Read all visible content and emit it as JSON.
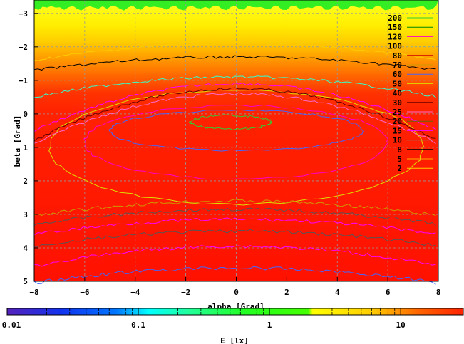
{
  "chart_data": {
    "type": "heatmap",
    "xlabel": "alpha [Grad]",
    "ylabel": "beta [Grad]",
    "xlim": [
      -8,
      8
    ],
    "ylim": [
      -3.4,
      5
    ],
    "y_reversed": true,
    "x_ticks": [
      -8,
      -6,
      -4,
      -2,
      0,
      2,
      4,
      6,
      8
    ],
    "y_ticks": [
      -3,
      -2,
      -1,
      0,
      1,
      2,
      3,
      4,
      5
    ],
    "grid": true,
    "colorbar": {
      "label": "E [lx]",
      "scale": "log",
      "range": [
        0.01,
        30
      ],
      "tick_labels": [
        "0.01",
        "0.1",
        "1",
        "10"
      ],
      "tick_values": [
        0.01,
        0.1,
        1,
        10
      ]
    },
    "legend_position": "top-right",
    "contour_levels": [
      {
        "name": "200",
        "color": "#33cc33"
      },
      {
        "name": "150",
        "color": "#008800"
      },
      {
        "name": "120",
        "color": "#ff00cc"
      },
      {
        "name": "100",
        "color": "#33ffcc"
      },
      {
        "name": "80",
        "color": "#cc0000"
      },
      {
        "name": "70",
        "color": "#cc9900"
      },
      {
        "name": "60",
        "color": "#4466ff"
      },
      {
        "name": "50",
        "color": "#dddd00"
      },
      {
        "name": "40",
        "color": "#555555"
      },
      {
        "name": "30",
        "color": "#660000"
      },
      {
        "name": "25",
        "color": "#ff66cc"
      },
      {
        "name": "20",
        "color": "#666600"
      },
      {
        "name": "15",
        "color": "#ff00ff"
      },
      {
        "name": "10",
        "color": "#00cccc"
      },
      {
        "name": "8",
        "color": "#000000"
      },
      {
        "name": "5",
        "color": "#ffaa00"
      },
      {
        "name": "2",
        "color": "#ffcc00"
      }
    ],
    "contours_drawn": [
      {
        "level": "200",
        "type": "ellipse",
        "cx": -0.2,
        "cy": 0.25,
        "rx": 1.6,
        "ry": 0.2
      },
      {
        "level": "60",
        "type": "ellipse",
        "cx": 0.0,
        "cy": 0.5,
        "rx": 5.0,
        "ry": 0.6
      },
      {
        "level": "120",
        "type": "ellipse",
        "cx": 0.0,
        "cy": 0.85,
        "rx": 6.0,
        "ry": 1.1
      },
      {
        "level": "50",
        "type": "ellipse",
        "cx": 0.0,
        "cy": 1.0,
        "rx": 7.4,
        "ry": 1.7
      },
      {
        "level": "25",
        "type": "arch",
        "y_top": -0.6,
        "y_end": 0.9
      },
      {
        "level": "30",
        "type": "arch",
        "y_top": -0.75,
        "y_end": 0.8
      },
      {
        "level": "15",
        "type": "arch",
        "y_top": -0.9,
        "y_end": 0.5
      },
      {
        "level": "100",
        "type": "arch",
        "y_top": -1.1,
        "y_end": -0.5
      },
      {
        "level": "8",
        "type": "arch",
        "y_top": -1.7,
        "y_end": -1.3
      },
      {
        "level": "2",
        "type": "arch",
        "y_top": -2.1,
        "y_end": -1.6
      },
      {
        "level": "70",
        "type": "wave",
        "y_center": 2.9,
        "amp": 0.3
      },
      {
        "level": "40",
        "type": "wave",
        "y_center": 3.15,
        "amp": 0.3
      },
      {
        "level": "15",
        "type": "wave",
        "y_center": 3.45,
        "amp": 0.3
      },
      {
        "level": "40",
        "type": "wave",
        "y_center": 3.8,
        "amp": 0.3
      },
      {
        "level": "15",
        "type": "wave",
        "y_center": 4.35,
        "amp": 0.4
      },
      {
        "level": "60",
        "type": "wave",
        "y_center": 4.9,
        "amp": 0.3
      }
    ]
  }
}
